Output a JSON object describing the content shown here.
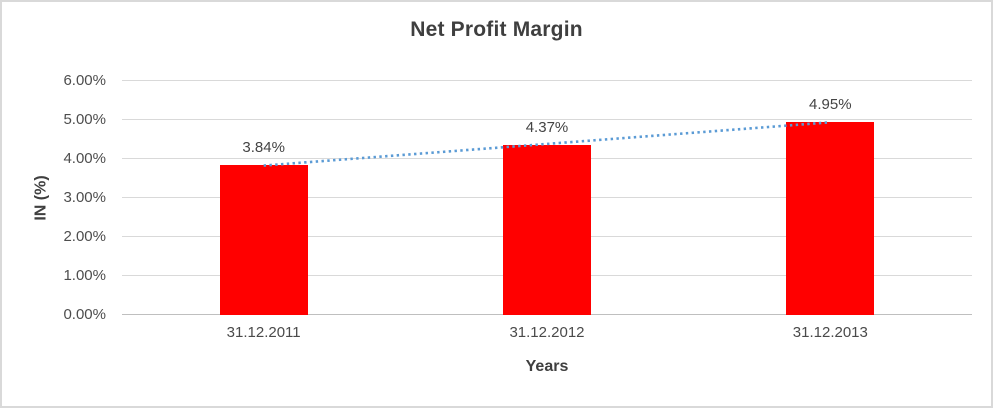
{
  "chart_data": {
    "type": "bar",
    "title": "Net Profit Margin",
    "categories": [
      "31.12.2011",
      "31.12.2012",
      "31.12.2013"
    ],
    "values": [
      3.84,
      4.37,
      4.95
    ],
    "data_labels": [
      "3.84%",
      "4.37%",
      "4.95%"
    ],
    "xlabel": "Years",
    "ylabel": "IN (%)",
    "ylim": [
      0,
      6
    ],
    "yticks": [
      0,
      1,
      2,
      3,
      4,
      5,
      6
    ],
    "ytick_labels": [
      "0.00%",
      "1.00%",
      "2.00%",
      "3.00%",
      "4.00%",
      "5.00%",
      "6.00%"
    ],
    "grid": true,
    "legend_position": "none",
    "bar_color": "#FF0000",
    "gridline_color": "#D9D9D9",
    "trendline": {
      "type": "linear",
      "style": "dotted",
      "color": "#5B9BD5"
    }
  }
}
